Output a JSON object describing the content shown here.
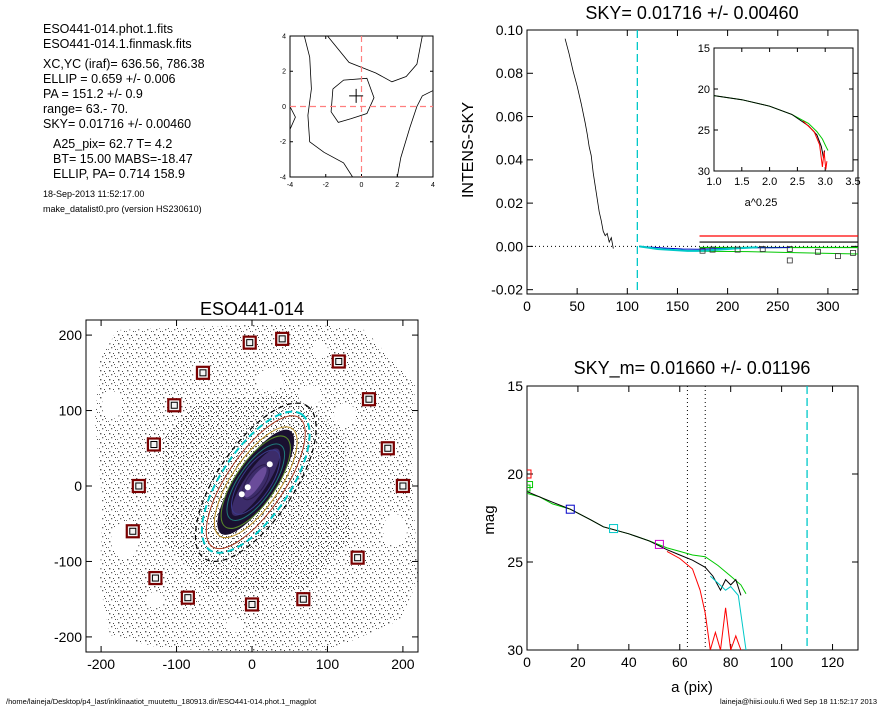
{
  "info": {
    "file1": "ESO441-014.phot.1.fits",
    "file2": "ESO441-014.1.finmask.fits",
    "xcyc": "XC,YC (iraf)=   636.56, 786.38",
    "ellip": "ELLIP = 0.659 +/- 0.006",
    "pa": "PA    = 151.2 +/-   0.9",
    "range": "range=   63.-   70.",
    "sky": "SKY= 0.01716 +/- 0.00460",
    "a25": "A25_pix= 62.7   T= 4.2",
    "bt": "BT=  15.00   MABS=-18.47",
    "ellip_pa": "ELLIP, PA= 0.714   158.9",
    "date": "18-Sep-2013 11:52:17.00",
    "program": "make_datalist0.pro (version HS230610)"
  },
  "footer": {
    "path": "/home/laineja/Desktop/p4_last/inklinaatiot_muutettu_180913.dir/ESO441-014.phot.1_magplot",
    "user_date": "laineja@hiisi.oulu.fi  Wed Sep 18 11:52:17 2013"
  },
  "chart_data": [
    {
      "id": "center-contour",
      "type": "contour",
      "xlim": [
        -4,
        4
      ],
      "ylim": [
        -4,
        4
      ],
      "xticks": [
        "-4",
        "-2",
        "0",
        "2",
        "4"
      ],
      "yticks": [
        "-4",
        "-2",
        "0",
        "2",
        "4"
      ],
      "dashed_cross": {
        "x": 0,
        "y": 0,
        "color": "#ff7f7f"
      },
      "center_marker": {
        "x": -0.3,
        "y": 0.6
      },
      "contours": [
        [
          [
            -1.6,
            1.0
          ],
          [
            -1.0,
            1.5
          ],
          [
            0.3,
            1.6
          ],
          [
            0.7,
            0.5
          ],
          [
            0.3,
            -0.4
          ],
          [
            -0.6,
            -0.7
          ],
          [
            -1.3,
            -0.9
          ],
          [
            -1.7,
            -0.3
          ],
          [
            -1.6,
            1.0
          ]
        ],
        [
          [
            -3.2,
            4.0
          ],
          [
            -2.9,
            2.8
          ],
          [
            -2.8,
            1.0
          ],
          [
            -3.0,
            -0.5
          ],
          [
            -2.9,
            -2.0
          ],
          [
            -2.1,
            -2.6
          ],
          [
            -1.0,
            -3.2
          ],
          [
            -0.5,
            -4.0
          ]
        ],
        [
          [
            -1.9,
            4.0
          ],
          [
            -0.7,
            2.5
          ],
          [
            0.8,
            1.9
          ],
          [
            1.7,
            1.4
          ],
          [
            2.5,
            1.7
          ],
          [
            3.1,
            2.4
          ],
          [
            3.4,
            4.0
          ]
        ],
        [
          [
            2.0,
            -4.0
          ],
          [
            2.2,
            -2.9
          ],
          [
            2.7,
            -1.2
          ],
          [
            3.1,
            0.0
          ],
          [
            3.4,
            0.6
          ],
          [
            4.0,
            0.9
          ]
        ],
        [
          [
            -4.0,
            0.0
          ],
          [
            -3.7,
            -0.6
          ],
          [
            -4.0,
            -1.3
          ]
        ]
      ]
    },
    {
      "id": "sky-profile",
      "type": "line",
      "title": "SKY= 0.01716 +/- 0.00460",
      "ylabel": "INTENS-SKY",
      "xlim": [
        0,
        330
      ],
      "ylim": [
        -0.022,
        0.1
      ],
      "xticks": [
        "0",
        "50",
        "100",
        "150",
        "200",
        "250",
        "300"
      ],
      "yticks": [
        "-0.02",
        "0.00",
        "0.02",
        "0.04",
        "0.06",
        "0.08",
        "0.10"
      ],
      "zero_line": 0,
      "vline_cyan": 110,
      "profile_black": [
        [
          38,
          0.096
        ],
        [
          42,
          0.089
        ],
        [
          46,
          0.081
        ],
        [
          50,
          0.074
        ],
        [
          54,
          0.066
        ],
        [
          58,
          0.057
        ],
        [
          60,
          0.052
        ],
        [
          62,
          0.046
        ],
        [
          64,
          0.042
        ],
        [
          66,
          0.034
        ],
        [
          68,
          0.028
        ],
        [
          70,
          0.022
        ],
        [
          72,
          0.016
        ],
        [
          74,
          0.012
        ],
        [
          76,
          0.007
        ],
        [
          78,
          0.005
        ],
        [
          80,
          0.006
        ],
        [
          82,
          0.002
        ],
        [
          84,
          0.004
        ],
        [
          86,
          -0.001
        ]
      ],
      "profile_cyan": [
        [
          112,
          0.0
        ],
        [
          120,
          -0.0005
        ],
        [
          130,
          -0.0012
        ],
        [
          140,
          -0.0015
        ],
        [
          150,
          -0.0018
        ],
        [
          160,
          -0.0021
        ],
        [
          170,
          -0.0021
        ],
        [
          180,
          -0.0019
        ],
        [
          190,
          -0.0015
        ],
        [
          200,
          -0.0012
        ],
        [
          210,
          -0.0009
        ],
        [
          220,
          -0.0006
        ],
        [
          230,
          -0.0004
        ]
      ],
      "profile_blue": [
        [
          112,
          0.0
        ],
        [
          125,
          -0.0004
        ],
        [
          140,
          -0.0009
        ],
        [
          155,
          -0.0012
        ],
        [
          170,
          -0.0013
        ],
        [
          185,
          -0.0011
        ],
        [
          200,
          -0.0009
        ],
        [
          215,
          -0.0007
        ],
        [
          230,
          -0.0006
        ],
        [
          245,
          -0.0006
        ],
        [
          262,
          -0.0005
        ]
      ],
      "hline_red": 0.0048,
      "hline_black": 0.002,
      "hline_green": -0.0005,
      "hlines_xstart": 172,
      "green_low": [
        [
          172,
          -0.0022
        ],
        [
          220,
          -0.0024
        ],
        [
          260,
          -0.0028
        ],
        [
          330,
          -0.0035
        ]
      ],
      "squares": [
        [
          175,
          -0.002
        ],
        [
          185,
          -0.0015
        ],
        [
          210,
          -0.0015
        ],
        [
          235,
          -0.0012
        ],
        [
          262,
          -0.0012
        ],
        [
          290,
          -0.0025
        ],
        [
          262,
          -0.0065
        ],
        [
          310,
          -0.0045
        ],
        [
          325,
          -0.003
        ]
      ]
    },
    {
      "id": "sky-inset",
      "type": "line",
      "xlabel": "a^0.25",
      "xlim": [
        1.0,
        3.5
      ],
      "ylim": [
        30,
        15
      ],
      "xticks": [
        "1.0",
        "1.5",
        "2.0",
        "2.5",
        "3.0",
        "3.5"
      ],
      "yticks": [
        "15",
        "20",
        "25",
        "30"
      ],
      "series": [
        {
          "color": "#00c800",
          "values": [
            [
              1.0,
              20.8
            ],
            [
              1.5,
              21.3
            ],
            [
              2.0,
              22.1
            ],
            [
              2.4,
              23.1
            ],
            [
              2.7,
              24.2
            ],
            [
              2.85,
              25.2
            ],
            [
              2.95,
              26.1
            ],
            [
              3.02,
              27.1
            ],
            [
              3.05,
              27.5
            ]
          ]
        },
        {
          "color": "#000000",
          "values": [
            [
              1.0,
              20.8
            ],
            [
              1.5,
              21.3
            ],
            [
              2.0,
              22.1
            ],
            [
              2.4,
              23.1
            ],
            [
              2.7,
              24.5
            ],
            [
              2.85,
              25.6
            ],
            [
              2.93,
              27.0
            ],
            [
              2.97,
              28.4
            ],
            [
              2.99,
              27.5
            ]
          ]
        },
        {
          "color": "#ff0000",
          "values": [
            [
              2.6,
              23.9
            ],
            [
              2.8,
              25.2
            ],
            [
              2.9,
              26.8
            ],
            [
              2.95,
              29.5
            ],
            [
              2.98,
              27.6
            ],
            [
              3.01,
              29.8
            ],
            [
              3.03,
              28.8
            ]
          ]
        }
      ]
    },
    {
      "id": "mag-profile",
      "type": "line",
      "title": "SKY_m=  0.01660 +/- 0.01196",
      "xlabel": "a (pix)",
      "ylabel": "mag",
      "xlim": [
        0,
        130
      ],
      "ylim": [
        30,
        15
      ],
      "xticks": [
        "0",
        "20",
        "40",
        "60",
        "80",
        "100",
        "120"
      ],
      "yticks": [
        "15",
        "20",
        "25",
        "30"
      ],
      "vlines_dotted": [
        63,
        70
      ],
      "vline_cyan": 110,
      "series": [
        {
          "color": "#00c800",
          "values": [
            [
              0,
              21.1
            ],
            [
              5,
              21.3
            ],
            [
              10,
              21.7
            ],
            [
              17,
              22.0
            ],
            [
              25,
              22.6
            ],
            [
              30,
              23.0
            ],
            [
              40,
              23.4
            ],
            [
              48,
              23.8
            ],
            [
              55,
              24.2
            ],
            [
              60,
              24.4
            ],
            [
              65,
              24.6
            ],
            [
              70,
              24.7
            ],
            [
              75,
              25.2
            ],
            [
              80,
              25.8
            ],
            [
              84,
              26.3
            ],
            [
              86,
              26.8
            ]
          ]
        },
        {
          "color": "#000000",
          "values": [
            [
              0,
              21.0
            ],
            [
              5,
              21.3
            ],
            [
              10,
              21.6
            ],
            [
              17,
              22.0
            ],
            [
              25,
              22.6
            ],
            [
              30,
              23.0
            ],
            [
              40,
              23.4
            ],
            [
              48,
              23.8
            ],
            [
              55,
              24.3
            ],
            [
              60,
              24.6
            ],
            [
              65,
              24.9
            ],
            [
              70,
              25.3
            ],
            [
              73,
              25.8
            ],
            [
              76,
              26.6
            ],
            [
              78,
              26.0
            ],
            [
              80,
              26.3
            ],
            [
              82,
              26.0
            ],
            [
              84,
              26.9
            ]
          ]
        },
        {
          "color": "#ff0000",
          "values": [
            [
              55,
              24.4
            ],
            [
              60,
              24.8
            ],
            [
              65,
              25.4
            ],
            [
              68,
              26.6
            ],
            [
              70,
              27.9
            ],
            [
              72,
              30.0
            ],
            [
              74,
              29.0
            ],
            [
              76,
              30.0
            ],
            [
              78,
              27.6
            ],
            [
              80,
              30.0
            ],
            [
              82,
              29.2
            ],
            [
              84,
              30.0
            ]
          ]
        },
        {
          "color": "#00c8c8",
          "values": [
            [
              72,
              25.8
            ],
            [
              75,
              26.2
            ],
            [
              78,
              26.6
            ],
            [
              80,
              26.4
            ],
            [
              83,
              26.9
            ],
            [
              86,
              30.0
            ]
          ]
        }
      ],
      "marks_green": [
        [
          0,
          20.8
        ],
        [
          1,
          20.6
        ]
      ],
      "squares": [
        {
          "x": 0,
          "y": 20.0,
          "color": "#ff0000"
        },
        {
          "x": 17,
          "y": 22.0,
          "color": "#0000c8"
        },
        {
          "x": 34,
          "y": 23.1,
          "color": "#00c8c8"
        },
        {
          "x": 52,
          "y": 24.0,
          "color": "#c800c8"
        }
      ]
    },
    {
      "id": "galaxy-image",
      "type": "image",
      "title": "ESO441-014",
      "xlim": [
        -220,
        220
      ],
      "ylim": [
        -220,
        220
      ],
      "xticks": [
        "-200",
        "-100",
        "0",
        "100",
        "200"
      ],
      "yticks": [
        "-200",
        "-100",
        "0",
        "100",
        "200"
      ],
      "ellipse": {
        "cx": 5,
        "cy": 5,
        "a_inner": [
          28,
          52,
          62,
          75,
          90,
          108
        ],
        "pa_deg": 151.2,
        "ellip": 0.659
      },
      "squares": [
        [
          -3,
          190
        ],
        [
          40,
          195
        ],
        [
          115,
          165
        ],
        [
          -65,
          150
        ],
        [
          155,
          115
        ],
        [
          -103,
          107
        ],
        [
          180,
          50
        ],
        [
          -130,
          55
        ],
        [
          -150,
          0
        ],
        [
          200,
          0
        ],
        [
          -158,
          -60
        ],
        [
          140,
          -95
        ],
        [
          -128,
          -122
        ],
        [
          -85,
          -148
        ],
        [
          0,
          -157
        ],
        [
          68,
          -150
        ]
      ]
    }
  ]
}
